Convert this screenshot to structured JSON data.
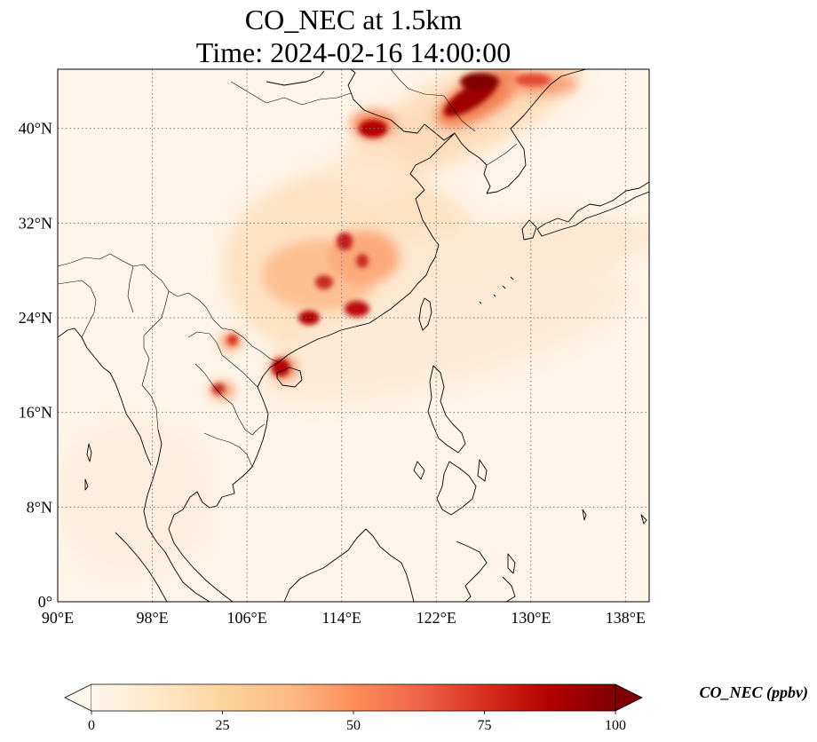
{
  "title": {
    "line1": "CO_NEC at 1.5km",
    "line2": "Time: 2024-02-16 14:00:00"
  },
  "map": {
    "lon_range": [
      90,
      140
    ],
    "lat_range": [
      0,
      45
    ],
    "x_ticks": [
      {
        "value": 90,
        "label": "90°E"
      },
      {
        "value": 98,
        "label": "98°E"
      },
      {
        "value": 106,
        "label": "106°E"
      },
      {
        "value": 114,
        "label": "114°E"
      },
      {
        "value": 122,
        "label": "122°E"
      },
      {
        "value": 130,
        "label": "130°E"
      },
      {
        "value": 138,
        "label": "138°E"
      }
    ],
    "y_ticks": [
      {
        "value": 0,
        "label": "0°"
      },
      {
        "value": 8,
        "label": "8°N"
      },
      {
        "value": 16,
        "label": "16°N"
      },
      {
        "value": 24,
        "label": "24°N"
      },
      {
        "value": 32,
        "label": "32°N"
      },
      {
        "value": 40,
        "label": "40°N"
      }
    ],
    "gridlines": true,
    "colormap": "OrRd"
  },
  "colorbar": {
    "label": "CO_NEC (ppbv)",
    "ticks": [
      "0",
      "25",
      "50",
      "75",
      "100"
    ],
    "range": [
      0,
      100
    ],
    "extend": "both",
    "colors": [
      "#fff7ec",
      "#fee8c8",
      "#fdd49e",
      "#fdbb84",
      "#fc8d59",
      "#ef6548",
      "#d7301f",
      "#b30000",
      "#7f0000"
    ]
  }
}
